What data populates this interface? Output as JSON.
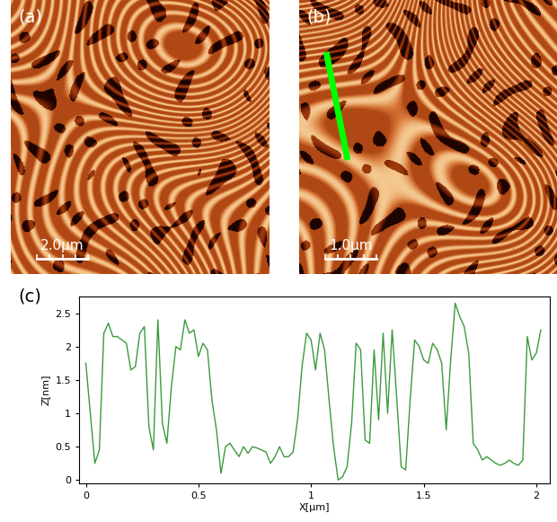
{
  "images": [
    {
      "label": "(a)",
      "scale_bar": "2.0μm"
    },
    {
      "label": "(b)",
      "scale_bar": "1.0μm"
    }
  ],
  "chart_data": {
    "type": "line",
    "title": "(c)",
    "x_label": "X[μm]",
    "y_label": "Z[nm]",
    "color": "#3c9a3c",
    "grid": false,
    "xlim": [
      -0.03,
      2.06
    ],
    "ylim": [
      -0.05,
      2.75
    ],
    "xticks": [
      0,
      0.5,
      1,
      1.5,
      2
    ],
    "yticks": [
      0,
      0.5,
      1,
      1.5,
      2,
      2.5
    ],
    "x": [
      0.0,
      0.02,
      0.04,
      0.06,
      0.08,
      0.1,
      0.12,
      0.14,
      0.16,
      0.18,
      0.2,
      0.22,
      0.24,
      0.26,
      0.28,
      0.3,
      0.32,
      0.34,
      0.36,
      0.38,
      0.4,
      0.42,
      0.44,
      0.46,
      0.48,
      0.5,
      0.52,
      0.54,
      0.56,
      0.58,
      0.6,
      0.62,
      0.64,
      0.66,
      0.68,
      0.7,
      0.72,
      0.74,
      0.76,
      0.78,
      0.8,
      0.82,
      0.84,
      0.86,
      0.88,
      0.9,
      0.92,
      0.94,
      0.96,
      0.98,
      1.0,
      1.02,
      1.04,
      1.06,
      1.08,
      1.1,
      1.12,
      1.14,
      1.16,
      1.18,
      1.2,
      1.22,
      1.24,
      1.26,
      1.28,
      1.3,
      1.32,
      1.34,
      1.36,
      1.38,
      1.4,
      1.42,
      1.44,
      1.46,
      1.48,
      1.5,
      1.52,
      1.54,
      1.56,
      1.58,
      1.6,
      1.62,
      1.64,
      1.66,
      1.68,
      1.7,
      1.72,
      1.74,
      1.76,
      1.78,
      1.8,
      1.82,
      1.84,
      1.86,
      1.88,
      1.9,
      1.92,
      1.94,
      1.96,
      1.98,
      2.0,
      2.02
    ],
    "values": [
      1.75,
      1.0,
      0.25,
      0.45,
      2.2,
      2.35,
      2.15,
      2.15,
      2.1,
      2.05,
      1.65,
      1.7,
      2.2,
      2.3,
      0.8,
      0.45,
      2.4,
      0.85,
      0.55,
      1.4,
      2.0,
      1.95,
      2.4,
      2.2,
      2.25,
      1.85,
      2.05,
      1.95,
      1.2,
      0.75,
      0.1,
      0.5,
      0.55,
      0.45,
      0.35,
      0.5,
      0.4,
      0.5,
      0.48,
      0.45,
      0.42,
      0.25,
      0.35,
      0.5,
      0.35,
      0.35,
      0.42,
      0.9,
      1.7,
      2.2,
      2.1,
      1.65,
      2.2,
      1.95,
      1.2,
      0.5,
      0.0,
      0.05,
      0.2,
      0.85,
      2.05,
      1.95,
      0.6,
      0.55,
      1.95,
      0.9,
      2.2,
      1.0,
      2.25,
      1.25,
      0.2,
      0.15,
      1.2,
      2.1,
      2.0,
      1.8,
      1.75,
      2.05,
      1.95,
      1.75,
      0.75,
      1.8,
      2.65,
      2.45,
      2.3,
      1.9,
      0.55,
      0.45,
      0.3,
      0.35,
      0.3,
      0.25,
      0.22,
      0.25,
      0.3,
      0.25,
      0.22,
      0.3,
      2.15,
      1.8,
      1.9,
      2.25
    ]
  }
}
